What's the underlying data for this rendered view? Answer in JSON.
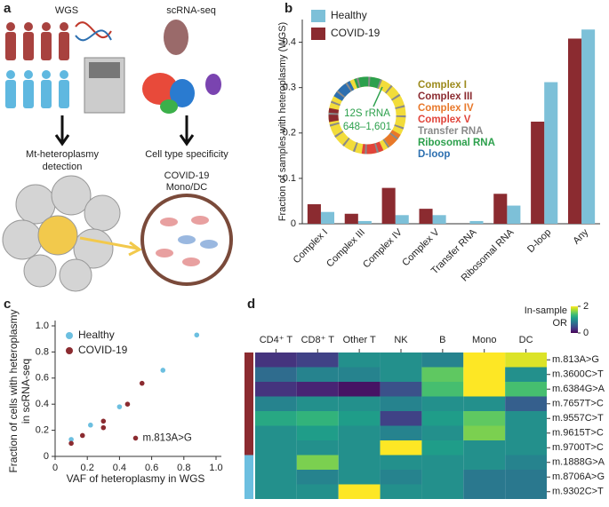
{
  "panel_labels": [
    "a",
    "b",
    "c",
    "d"
  ],
  "panel_a": {
    "wgs": "WGS",
    "scrna": "scRNA-seq",
    "detection": [
      "Mt-heteroplasmy",
      "detection"
    ],
    "specificity": "Cell type specificity",
    "covid": [
      "COVID-19",
      "Mono/DC"
    ]
  },
  "chart_data": [
    {
      "type": "bar",
      "ylabel": "Fraction of samples with heteroplasmy (WGS)",
      "categories": [
        "Complex I",
        "Complex III",
        "Complex IV",
        "Complex V",
        "Transfer RNA",
        "Ribosomal RNA",
        "D-loop",
        "Any"
      ],
      "series": [
        {
          "name": "Healthy",
          "color": "#7dc0d8",
          "values": [
            0.026,
            0.006,
            0.019,
            0.019,
            0.006,
            0.04,
            0.312,
            0.428
          ]
        },
        {
          "name": "COVID-19",
          "color": "#8b2b30",
          "values": [
            0.043,
            0.022,
            0.079,
            0.033,
            0,
            0.066,
            0.225,
            0.408
          ]
        }
      ],
      "ylim": [
        0,
        0.45
      ],
      "yticks": [
        0,
        0.1,
        0.2,
        0.3,
        0.4
      ],
      "legend": "upper left",
      "inset": {
        "labels": [
          "Complex I",
          "Complex III",
          "Complex IV",
          "Complex V",
          "Transfer RNA",
          "Ribosomal RNA",
          "D-loop"
        ],
        "colors": [
          "#9c8a1c",
          "#8b2b30",
          "#e8782a",
          "#e0443a",
          "#8a8a8a",
          "#2ca04c",
          "#2c6fb0"
        ],
        "annotation": [
          "12S rRNA",
          "648–1,601"
        ]
      }
    },
    {
      "type": "scatter",
      "xlabel": "VAF of heteroplasmy in WGS",
      "ylabel": [
        "Fraction of cells with heteroplasmy",
        "in scRNA-seq"
      ],
      "series": [
        {
          "name": "Healthy",
          "color": "#6cbfe0",
          "x": [
            0.1,
            0.22,
            0.4,
            0.67,
            0.88
          ],
          "values": [
            0.13,
            0.24,
            0.38,
            0.66,
            0.93
          ]
        },
        {
          "name": "COVID-19",
          "color": "#8b2b30",
          "x": [
            0.1,
            0.17,
            0.3,
            0.3,
            0.45,
            0.54,
            0.5
          ],
          "values": [
            0.1,
            0.16,
            0.27,
            0.22,
            0.4,
            0.56,
            0.14
          ]
        }
      ],
      "annotation": "m.813A>G",
      "xlim": [
        0,
        1
      ],
      "xticks": [
        0,
        0.2,
        0.4,
        0.6,
        0.8,
        {
          "value": 1,
          "label": "1.0"
        }
      ],
      "ylim": [
        0,
        1
      ],
      "yticks": [
        0,
        0.2,
        0.4,
        0.6,
        0.8,
        {
          "value": 1,
          "label": "1.0"
        }
      ],
      "legend": "upper left"
    },
    {
      "type": "heatmap",
      "columns": [
        "CD4⁺ T",
        "CD8⁺ T",
        "Other T",
        "NK",
        "B",
        "Mono",
        "DC"
      ],
      "rows": [
        "m.813A>G",
        "m.3600C>T",
        "m.6384G>A",
        "m.7657T>C",
        "m.9557C>T",
        "m.9615T>C",
        "m.9700T>C",
        "m.1888G>A",
        "m.8706A>G",
        "m.9302C>T"
      ],
      "row_colors": [
        "#8b2b30",
        "#8b2b30",
        "#8b2b30",
        "#8b2b30",
        "#8b2b30",
        "#8b2b30",
        "#8b2b30",
        "#6cbfe0",
        "#6cbfe0",
        "#6cbfe0"
      ],
      "values": [
        [
          0.3,
          0.4,
          1.0,
          1.0,
          0.9,
          2.0,
          1.9
        ],
        [
          0.7,
          0.9,
          0.9,
          1.0,
          1.5,
          2.0,
          1.0
        ],
        [
          0.3,
          0.2,
          0.1,
          0.5,
          1.4,
          2.0,
          1.4
        ],
        [
          0.9,
          1.0,
          1.0,
          0.9,
          1.0,
          1.0,
          0.6
        ],
        [
          1.2,
          1.3,
          1.1,
          0.4,
          1.1,
          1.5,
          1.0
        ],
        [
          1.0,
          1.1,
          1.0,
          0.9,
          1.0,
          1.6,
          1.0
        ],
        [
          1.0,
          1.0,
          1.0,
          2.0,
          1.1,
          1.0,
          1.0
        ],
        [
          1.0,
          1.6,
          1.0,
          1.0,
          1.0,
          1.0,
          0.9
        ],
        [
          1.0,
          0.9,
          1.0,
          0.9,
          1.0,
          0.8,
          0.8
        ],
        [
          1.0,
          1.0,
          2.0,
          1.0,
          1.0,
          0.8,
          0.8
        ]
      ],
      "colorbar_label": [
        "In-sample",
        "OR"
      ],
      "zlim": [
        0,
        2
      ],
      "zticks": [
        0,
        2
      ]
    }
  ]
}
